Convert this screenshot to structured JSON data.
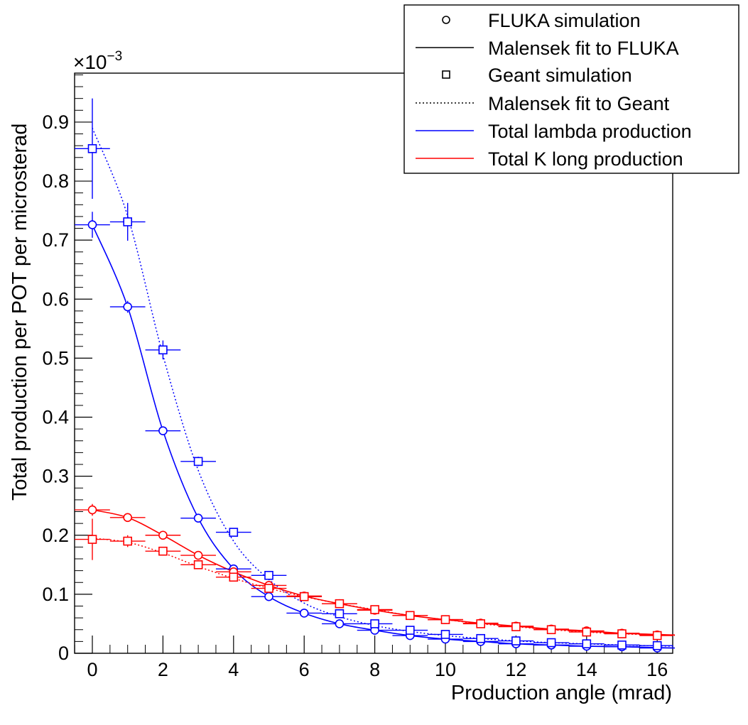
{
  "chart_data": {
    "type": "scatter",
    "title": "",
    "xlabel": "Production angle (mrad)",
    "ylabel": "Total production per POT per microsterad",
    "y_exponent_label": "×10",
    "y_exponent_sup": "−3",
    "xlim": [
      -0.5,
      16.5
    ],
    "ylim": [
      0,
      1.0
    ],
    "x_ticks": [
      0,
      2,
      4,
      6,
      8,
      10,
      12,
      14,
      16
    ],
    "x_tick_labels": [
      "0",
      "2",
      "4",
      "6",
      "8",
      "10",
      "12",
      "14",
      "16"
    ],
    "y_ticks": [
      0,
      0.1,
      0.2,
      0.3,
      0.4,
      0.5,
      0.6,
      0.7,
      0.8,
      0.9
    ],
    "y_tick_labels": [
      "0",
      "0.1",
      "0.2",
      "0.3",
      "0.4",
      "0.5",
      "0.6",
      "0.7",
      "0.8",
      "0.9"
    ],
    "legend": {
      "position": "top-right",
      "entries": [
        {
          "label": "FLUKA simulation",
          "kind": "marker-circle",
          "color": "#000000"
        },
        {
          "label": "Malensek fit to FLUKA",
          "kind": "line-solid",
          "color": "#000000"
        },
        {
          "label": "Geant simulation",
          "kind": "marker-square",
          "color": "#000000"
        },
        {
          "label": "Malensek fit to Geant",
          "kind": "line-dotted",
          "color": "#000000"
        },
        {
          "label": "Total lambda production",
          "kind": "line-solid",
          "color": "#0000ff"
        },
        {
          "label": "Total K long production",
          "kind": "line-solid",
          "color": "#ff0000"
        }
      ]
    },
    "series": [
      {
        "name": "Lambda FLUKA simulation",
        "color": "#0000ff",
        "marker": "circle",
        "x": [
          0,
          1,
          2,
          3,
          4,
          5,
          6,
          7,
          8,
          9,
          10,
          11,
          12,
          13,
          14,
          15,
          16
        ],
        "y": [
          0.726,
          0.587,
          0.377,
          0.229,
          0.143,
          0.096,
          0.068,
          0.05,
          0.039,
          0.03,
          0.024,
          0.02,
          0.016,
          0.014,
          0.012,
          0.011,
          0.009
        ],
        "yerr": [
          0.022,
          0.01,
          0.006,
          0.004,
          0.003,
          0.002,
          0.002,
          0.001,
          0.001,
          0.001,
          0.001,
          0.001,
          0.001,
          0.001,
          0.001,
          0.001,
          0.001
        ],
        "xerr": 0.5
      },
      {
        "name": "Lambda Geant simulation",
        "color": "#0000ff",
        "marker": "square",
        "x": [
          0,
          1,
          2,
          3,
          4,
          5,
          6,
          7,
          8,
          9,
          10,
          11,
          12,
          13,
          14,
          15,
          16
        ],
        "y": [
          0.855,
          0.731,
          0.514,
          0.325,
          0.205,
          0.132,
          0.096,
          0.067,
          0.05,
          0.039,
          0.032,
          0.025,
          0.021,
          0.018,
          0.016,
          0.014,
          0.013
        ],
        "yerr": [
          0.085,
          0.032,
          0.016,
          0.008,
          0.005,
          0.003,
          0.003,
          0.002,
          0.002,
          0.001,
          0.001,
          0.001,
          0.001,
          0.001,
          0.001,
          0.001,
          0.001
        ],
        "xerr": 0.5
      },
      {
        "name": "K long FLUKA simulation",
        "color": "#ff0000",
        "marker": "circle",
        "x": [
          0,
          1,
          2,
          3,
          4,
          5,
          6,
          7,
          8,
          9,
          10,
          11,
          12,
          13,
          14,
          15,
          16
        ],
        "y": [
          0.243,
          0.23,
          0.2,
          0.166,
          0.138,
          0.115,
          0.097,
          0.084,
          0.073,
          0.064,
          0.057,
          0.051,
          0.046,
          0.041,
          0.038,
          0.034,
          0.031
        ],
        "yerr": [
          0.01,
          0.005,
          0.003,
          0.002,
          0.002,
          0.002,
          0.001,
          0.001,
          0.001,
          0.001,
          0.001,
          0.001,
          0.001,
          0.001,
          0.001,
          0.001,
          0.001
        ],
        "xerr": 0.5
      },
      {
        "name": "K long Geant simulation",
        "color": "#ff0000",
        "marker": "square",
        "x": [
          0,
          1,
          2,
          3,
          4,
          5,
          6,
          7,
          8,
          9,
          10,
          11,
          12,
          13,
          14,
          15,
          16
        ],
        "y": [
          0.193,
          0.19,
          0.173,
          0.15,
          0.129,
          0.11,
          0.096,
          0.084,
          0.074,
          0.064,
          0.057,
          0.05,
          0.045,
          0.04,
          0.036,
          0.033,
          0.03
        ],
        "yerr": [
          0.035,
          0.01,
          0.006,
          0.004,
          0.003,
          0.002,
          0.002,
          0.001,
          0.001,
          0.001,
          0.001,
          0.001,
          0.001,
          0.001,
          0.001,
          0.001,
          0.001
        ],
        "xerr": 0.5
      }
    ],
    "fits": [
      {
        "name": "Malensek fit to FLUKA (lambda)",
        "color": "#0000ff",
        "style": "solid",
        "x": [
          0,
          1,
          2,
          3,
          4,
          5,
          6,
          7,
          8,
          9,
          10,
          11,
          12,
          13,
          14,
          15,
          16.5
        ],
        "y": [
          0.726,
          0.587,
          0.377,
          0.229,
          0.143,
          0.096,
          0.068,
          0.05,
          0.039,
          0.03,
          0.024,
          0.02,
          0.016,
          0.014,
          0.012,
          0.011,
          0.009
        ]
      },
      {
        "name": "Malensek fit to Geant (lambda)",
        "color": "#0000ff",
        "style": "dotted",
        "x": [
          0,
          1,
          2,
          3,
          4,
          5,
          6,
          7,
          8,
          9,
          10,
          11,
          12,
          13,
          14,
          15,
          16.5
        ],
        "y": [
          0.89,
          0.741,
          0.505,
          0.31,
          0.19,
          0.125,
          0.085,
          0.062,
          0.047,
          0.037,
          0.03,
          0.025,
          0.021,
          0.018,
          0.016,
          0.014,
          0.012
        ]
      },
      {
        "name": "Malensek fit to FLUKA (K long)",
        "color": "#ff0000",
        "style": "solid",
        "x": [
          0,
          1,
          2,
          3,
          4,
          5,
          6,
          7,
          8,
          9,
          10,
          11,
          12,
          13,
          14,
          15,
          16.5
        ],
        "y": [
          0.243,
          0.23,
          0.2,
          0.166,
          0.138,
          0.115,
          0.097,
          0.084,
          0.073,
          0.064,
          0.057,
          0.051,
          0.046,
          0.041,
          0.038,
          0.034,
          0.031
        ]
      },
      {
        "name": "Malensek fit to Geant (K long)",
        "color": "#ff0000",
        "style": "dotted",
        "x": [
          0,
          1,
          2,
          3,
          4,
          5,
          6,
          7,
          8,
          9,
          10,
          11,
          12,
          13,
          14,
          15,
          16.5
        ],
        "y": [
          0.195,
          0.188,
          0.17,
          0.147,
          0.127,
          0.11,
          0.096,
          0.084,
          0.074,
          0.064,
          0.057,
          0.05,
          0.045,
          0.04,
          0.036,
          0.033,
          0.03
        ]
      }
    ]
  }
}
